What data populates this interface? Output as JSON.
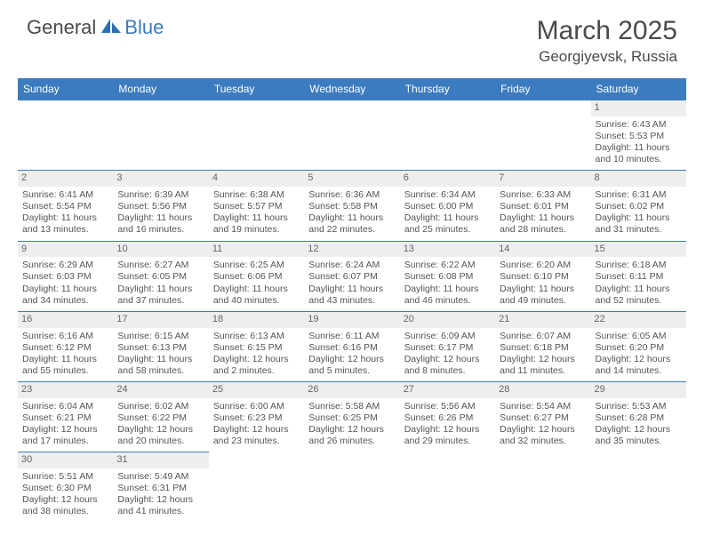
{
  "logo": {
    "general": "General",
    "blue": "Blue"
  },
  "title": "March 2025",
  "location": "Georgiyevsk, Russia",
  "weekdays": [
    "Sunday",
    "Monday",
    "Tuesday",
    "Wednesday",
    "Thursday",
    "Friday",
    "Saturday"
  ],
  "colors": {
    "header_bg": "#3b7bbf",
    "header_text": "#ffffff",
    "daynum_bg": "#eeeeee",
    "cell_border": "#3b7bbf",
    "body_text": "#555555",
    "title_text": "#4a4a4a"
  },
  "typography": {
    "title_fontsize": 30,
    "location_fontsize": 17,
    "weekday_fontsize": 12,
    "cell_fontsize": 10.5,
    "daynum_fontsize": 11
  },
  "grid": [
    [
      {
        "day": "",
        "sunrise": "",
        "sunset": "",
        "daylight": ""
      },
      {
        "day": "",
        "sunrise": "",
        "sunset": "",
        "daylight": ""
      },
      {
        "day": "",
        "sunrise": "",
        "sunset": "",
        "daylight": ""
      },
      {
        "day": "",
        "sunrise": "",
        "sunset": "",
        "daylight": ""
      },
      {
        "day": "",
        "sunrise": "",
        "sunset": "",
        "daylight": ""
      },
      {
        "day": "",
        "sunrise": "",
        "sunset": "",
        "daylight": ""
      },
      {
        "day": "1",
        "sunrise": "Sunrise: 6:43 AM",
        "sunset": "Sunset: 5:53 PM",
        "daylight": "Daylight: 11 hours and 10 minutes."
      }
    ],
    [
      {
        "day": "2",
        "sunrise": "Sunrise: 6:41 AM",
        "sunset": "Sunset: 5:54 PM",
        "daylight": "Daylight: 11 hours and 13 minutes."
      },
      {
        "day": "3",
        "sunrise": "Sunrise: 6:39 AM",
        "sunset": "Sunset: 5:56 PM",
        "daylight": "Daylight: 11 hours and 16 minutes."
      },
      {
        "day": "4",
        "sunrise": "Sunrise: 6:38 AM",
        "sunset": "Sunset: 5:57 PM",
        "daylight": "Daylight: 11 hours and 19 minutes."
      },
      {
        "day": "5",
        "sunrise": "Sunrise: 6:36 AM",
        "sunset": "Sunset: 5:58 PM",
        "daylight": "Daylight: 11 hours and 22 minutes."
      },
      {
        "day": "6",
        "sunrise": "Sunrise: 6:34 AM",
        "sunset": "Sunset: 6:00 PM",
        "daylight": "Daylight: 11 hours and 25 minutes."
      },
      {
        "day": "7",
        "sunrise": "Sunrise: 6:33 AM",
        "sunset": "Sunset: 6:01 PM",
        "daylight": "Daylight: 11 hours and 28 minutes."
      },
      {
        "day": "8",
        "sunrise": "Sunrise: 6:31 AM",
        "sunset": "Sunset: 6:02 PM",
        "daylight": "Daylight: 11 hours and 31 minutes."
      }
    ],
    [
      {
        "day": "9",
        "sunrise": "Sunrise: 6:29 AM",
        "sunset": "Sunset: 6:03 PM",
        "daylight": "Daylight: 11 hours and 34 minutes."
      },
      {
        "day": "10",
        "sunrise": "Sunrise: 6:27 AM",
        "sunset": "Sunset: 6:05 PM",
        "daylight": "Daylight: 11 hours and 37 minutes."
      },
      {
        "day": "11",
        "sunrise": "Sunrise: 6:25 AM",
        "sunset": "Sunset: 6:06 PM",
        "daylight": "Daylight: 11 hours and 40 minutes."
      },
      {
        "day": "12",
        "sunrise": "Sunrise: 6:24 AM",
        "sunset": "Sunset: 6:07 PM",
        "daylight": "Daylight: 11 hours and 43 minutes."
      },
      {
        "day": "13",
        "sunrise": "Sunrise: 6:22 AM",
        "sunset": "Sunset: 6:08 PM",
        "daylight": "Daylight: 11 hours and 46 minutes."
      },
      {
        "day": "14",
        "sunrise": "Sunrise: 6:20 AM",
        "sunset": "Sunset: 6:10 PM",
        "daylight": "Daylight: 11 hours and 49 minutes."
      },
      {
        "day": "15",
        "sunrise": "Sunrise: 6:18 AM",
        "sunset": "Sunset: 6:11 PM",
        "daylight": "Daylight: 11 hours and 52 minutes."
      }
    ],
    [
      {
        "day": "16",
        "sunrise": "Sunrise: 6:16 AM",
        "sunset": "Sunset: 6:12 PM",
        "daylight": "Daylight: 11 hours and 55 minutes."
      },
      {
        "day": "17",
        "sunrise": "Sunrise: 6:15 AM",
        "sunset": "Sunset: 6:13 PM",
        "daylight": "Daylight: 11 hours and 58 minutes."
      },
      {
        "day": "18",
        "sunrise": "Sunrise: 6:13 AM",
        "sunset": "Sunset: 6:15 PM",
        "daylight": "Daylight: 12 hours and 2 minutes."
      },
      {
        "day": "19",
        "sunrise": "Sunrise: 6:11 AM",
        "sunset": "Sunset: 6:16 PM",
        "daylight": "Daylight: 12 hours and 5 minutes."
      },
      {
        "day": "20",
        "sunrise": "Sunrise: 6:09 AM",
        "sunset": "Sunset: 6:17 PM",
        "daylight": "Daylight: 12 hours and 8 minutes."
      },
      {
        "day": "21",
        "sunrise": "Sunrise: 6:07 AM",
        "sunset": "Sunset: 6:18 PM",
        "daylight": "Daylight: 12 hours and 11 minutes."
      },
      {
        "day": "22",
        "sunrise": "Sunrise: 6:05 AM",
        "sunset": "Sunset: 6:20 PM",
        "daylight": "Daylight: 12 hours and 14 minutes."
      }
    ],
    [
      {
        "day": "23",
        "sunrise": "Sunrise: 6:04 AM",
        "sunset": "Sunset: 6:21 PM",
        "daylight": "Daylight: 12 hours and 17 minutes."
      },
      {
        "day": "24",
        "sunrise": "Sunrise: 6:02 AM",
        "sunset": "Sunset: 6:22 PM",
        "daylight": "Daylight: 12 hours and 20 minutes."
      },
      {
        "day": "25",
        "sunrise": "Sunrise: 6:00 AM",
        "sunset": "Sunset: 6:23 PM",
        "daylight": "Daylight: 12 hours and 23 minutes."
      },
      {
        "day": "26",
        "sunrise": "Sunrise: 5:58 AM",
        "sunset": "Sunset: 6:25 PM",
        "daylight": "Daylight: 12 hours and 26 minutes."
      },
      {
        "day": "27",
        "sunrise": "Sunrise: 5:56 AM",
        "sunset": "Sunset: 6:26 PM",
        "daylight": "Daylight: 12 hours and 29 minutes."
      },
      {
        "day": "28",
        "sunrise": "Sunrise: 5:54 AM",
        "sunset": "Sunset: 6:27 PM",
        "daylight": "Daylight: 12 hours and 32 minutes."
      },
      {
        "day": "29",
        "sunrise": "Sunrise: 5:53 AM",
        "sunset": "Sunset: 6:28 PM",
        "daylight": "Daylight: 12 hours and 35 minutes."
      }
    ],
    [
      {
        "day": "30",
        "sunrise": "Sunrise: 5:51 AM",
        "sunset": "Sunset: 6:30 PM",
        "daylight": "Daylight: 12 hours and 38 minutes."
      },
      {
        "day": "31",
        "sunrise": "Sunrise: 5:49 AM",
        "sunset": "Sunset: 6:31 PM",
        "daylight": "Daylight: 12 hours and 41 minutes."
      },
      {
        "day": "",
        "sunrise": "",
        "sunset": "",
        "daylight": ""
      },
      {
        "day": "",
        "sunrise": "",
        "sunset": "",
        "daylight": ""
      },
      {
        "day": "",
        "sunrise": "",
        "sunset": "",
        "daylight": ""
      },
      {
        "day": "",
        "sunrise": "",
        "sunset": "",
        "daylight": ""
      },
      {
        "day": "",
        "sunrise": "",
        "sunset": "",
        "daylight": ""
      }
    ]
  ]
}
